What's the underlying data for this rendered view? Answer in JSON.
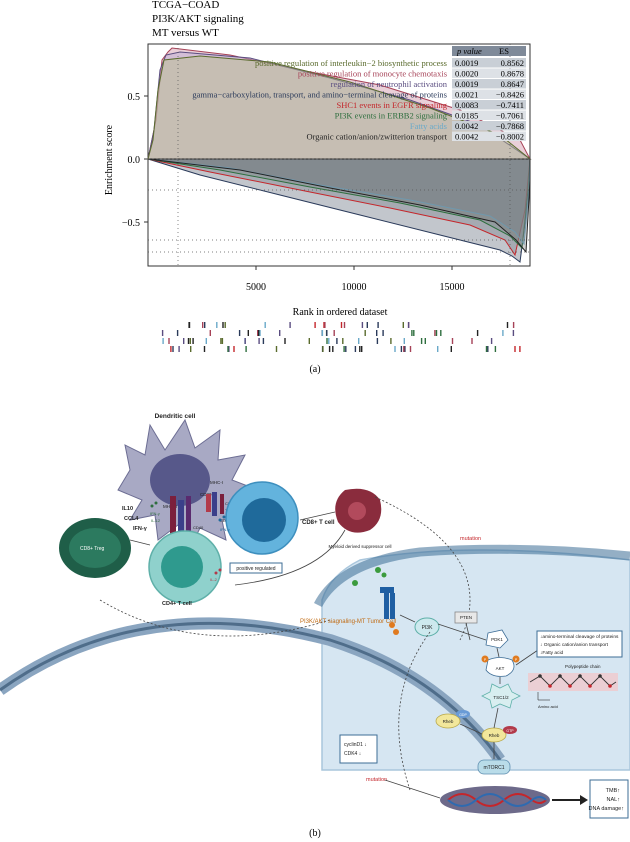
{
  "panel_a": {
    "header": [
      "TCGA−COAD",
      "PI3K/AKT signaling",
      "MT versus WT"
    ],
    "y_axis_label": "Enrichment score",
    "x_axis_label": "Rank in ordered dataset",
    "x_ticks": [
      "5000",
      "10000",
      "15000"
    ],
    "y_ticks": [
      "0.5",
      "0.0",
      "−0.5"
    ],
    "table_headers": [
      "p value",
      "ES"
    ],
    "table_rows": [
      {
        "name": "positive regulation of interleukin−2 biosynthetic process",
        "p": "0.0019",
        "es": "0.8562",
        "color": "#5a6b2d"
      },
      {
        "name": "positive regulation of monocyte chemotaxis",
        "p": "0.0020",
        "es": "0.8678",
        "color": "#a64257"
      },
      {
        "name": "regulation of neutrophil activation",
        "p": "0.0019",
        "es": "0.8647",
        "color": "#5a4d80"
      },
      {
        "name": "gamma−carboxylation, transport, and amino−terminal cleavage of proteins",
        "p": "0.0021",
        "es": "−0.8426",
        "color": "#2a3a5a"
      },
      {
        "name": "SHC1 events in EGFR signaling",
        "p": "0.0083",
        "es": "−0.7411",
        "color": "#c4262b"
      },
      {
        "name": "PI3K events in ERBB2 signaling",
        "p": "0.0185",
        "es": "−0.7061",
        "color": "#2e6e3e"
      },
      {
        "name": "Fatty acids",
        "p": "0.0042",
        "es": "−0.7868",
        "color": "#6aa9c9"
      },
      {
        "name": "Organic cation/anion/zwitterion transport",
        "p": "0.0042",
        "es": "−0.8002",
        "color": "#222222"
      }
    ],
    "caption": "(a)"
  },
  "panel_b": {
    "dendritic_cell": "Dendritic cell",
    "mhc_i": "MHC-I",
    "mhc_ii": "MHC-II",
    "cd80": "CD80",
    "cd8": "CD8",
    "tcr": "TCR",
    "cd28": "CD28",
    "cd40": "CD40",
    "cd40l": "CD40L",
    "tcr_cd4": "TCR  CD4",
    "cd8_tcell": "CD8+ T cell",
    "cd4_tcell": "CD4+ T cell",
    "treg": "CD8+ Treg",
    "il10": "IL10",
    "ccl4": "CCL4",
    "ifng": "IFN-γ",
    "ifng_small": "IFN-γ",
    "il12": "IL-12",
    "il2": "IL-2",
    "positive_regulated": "positive regulated",
    "mdsc": "Myeloid derived suppressor cell",
    "mutation_top": "mutation",
    "tumor_label": "PI3K/AKT siagnaling-MT Tumor Cell",
    "pi3k": "PI3K",
    "pten": "PTEN",
    "pdk1": "PDK1",
    "akt": "AKT",
    "p": "P",
    "tsc": "TSC1/2",
    "rheb": "Rheb",
    "gdp": "GDP",
    "gtp": "GTP",
    "mtorc1": "mTORC1",
    "info_lines": [
      "↓amino-terminal cleavage of proteins",
      "↓ Organic cation/anion transport",
      "↓Fatty acid"
    ],
    "polypeptide": "Polypeptide chain",
    "amino_acid": "Amino acid",
    "cyclin_lines": [
      "cyclinD1 ↓",
      "CDK4    ↓"
    ],
    "mutation_bottom": "mutation",
    "outcome_lines": [
      "TMB↑",
      "NAL↑",
      "DNA damage↑"
    ],
    "caption": "(b)"
  }
}
